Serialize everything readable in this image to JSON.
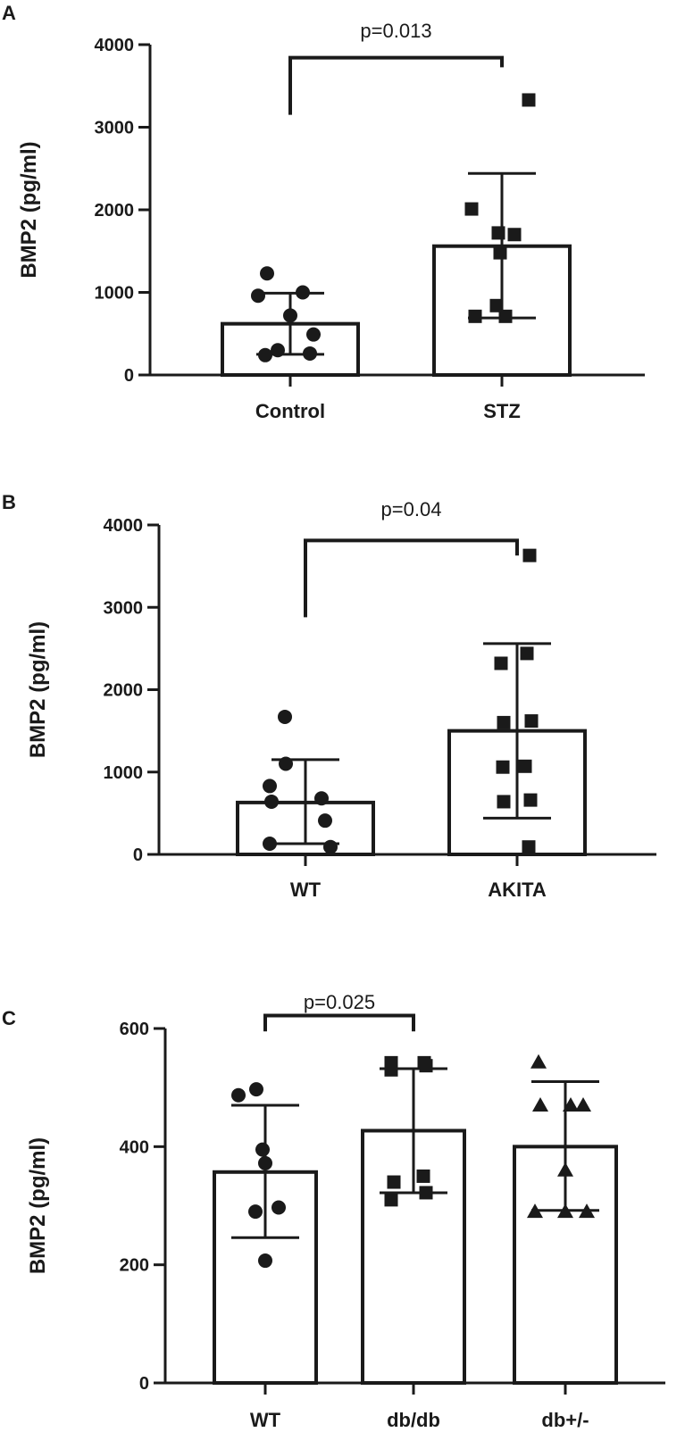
{
  "chart_data": [
    {
      "panel": "A",
      "type": "bar",
      "ylabel": "BMP2 (pg/ml)",
      "ylim": [
        0,
        4000
      ],
      "yticks": [
        0,
        1000,
        2000,
        3000,
        4000
      ],
      "categories": [
        "Control",
        "STZ"
      ],
      "means": [
        620,
        1560
      ],
      "sd_lower": [
        250,
        690
      ],
      "sd_upper": [
        990,
        2440
      ],
      "markers": [
        "circle",
        "square"
      ],
      "points": [
        [
          1230,
          1000,
          960,
          720,
          490,
          300,
          240,
          260
        ],
        [
          3330,
          2010,
          1720,
          1700,
          1480,
          840,
          710,
          710
        ]
      ],
      "comparison": {
        "from": 0,
        "to": 1,
        "label": "p=0.013",
        "y": 3950,
        "tick_bottom": [
          3150,
          3950
        ]
      }
    },
    {
      "panel": "B",
      "type": "bar",
      "ylabel": "BMP2 (pg/ml)",
      "ylim": [
        0,
        4000
      ],
      "yticks": [
        0,
        1000,
        2000,
        3000,
        4000
      ],
      "categories": [
        "WT",
        "AKITA"
      ],
      "means": [
        630,
        1500
      ],
      "sd_lower": [
        130,
        440
      ],
      "sd_upper": [
        1150,
        2560
      ],
      "markers": [
        "circle",
        "square"
      ],
      "points": [
        [
          1670,
          1100,
          830,
          680,
          640,
          410,
          130,
          90
        ],
        [
          3630,
          2440,
          2320,
          1620,
          1600,
          1070,
          1060,
          660,
          640,
          90
        ]
      ],
      "comparison": {
        "from": 0,
        "to": 1,
        "label": "p=0.04",
        "y": 3920,
        "tick_bottom": [
          2880,
          3920
        ]
      }
    },
    {
      "panel": "C",
      "type": "bar",
      "ylabel": "BMP2 (pg/ml)",
      "ylim": [
        0,
        600
      ],
      "yticks": [
        0,
        200,
        400,
        600
      ],
      "categories": [
        "WT",
        "db/db",
        "db+/-"
      ],
      "means": [
        357,
        427,
        400
      ],
      "sd_lower": [
        246,
        322,
        292
      ],
      "sd_upper": [
        470,
        532,
        510
      ],
      "markers": [
        "circle",
        "square",
        "triangle"
      ],
      "points": [
        [
          497,
          487,
          395,
          372,
          297,
          290,
          207
        ],
        [
          542,
          542,
          537,
          530,
          350,
          340,
          310,
          322
        ],
        [
          543,
          470,
          470,
          470,
          360,
          290,
          290,
          290
        ]
      ],
      "comparison": {
        "from": 0,
        "to": 1,
        "label": "p=0.025",
        "y": 622,
        "tick_bottom": [
          595,
          622
        ]
      }
    }
  ],
  "panels": {
    "a": {
      "label": "A"
    },
    "b": {
      "label": "B"
    },
    "c": {
      "label": "C"
    }
  }
}
